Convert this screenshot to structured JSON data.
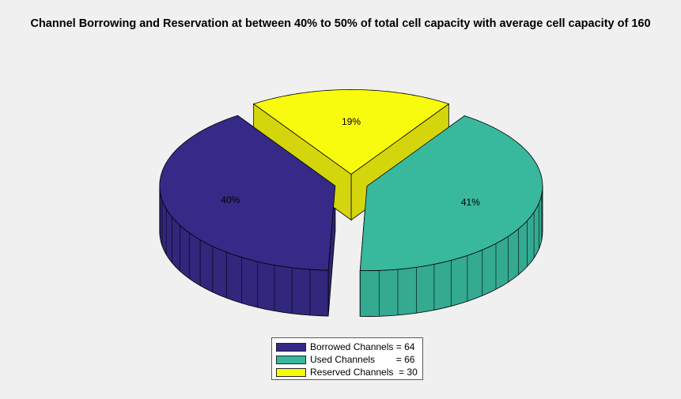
{
  "title": "Channel Borrowing and Reservation at between 40% to 50% of total cell capacity with average cell capacity of 160",
  "chart_data": {
    "type": "pie",
    "style": "3d-exploded",
    "title": "Channel Borrowing and Reservation at between 40% to 50% of total cell capacity with average cell capacity of 160",
    "slices": [
      {
        "legend_label": "Borrowed Channels = 64",
        "value": 64,
        "percent_label": "40%",
        "color": "#352a87"
      },
      {
        "legend_label": "Used Channels        = 66",
        "value": 66,
        "percent_label": "41%",
        "color": "#38b99e"
      },
      {
        "legend_label": "Reserved Channels  = 30",
        "value": 30,
        "percent_label": "19%",
        "color": "#f9fb0e"
      }
    ],
    "legend_position": "bottom"
  }
}
